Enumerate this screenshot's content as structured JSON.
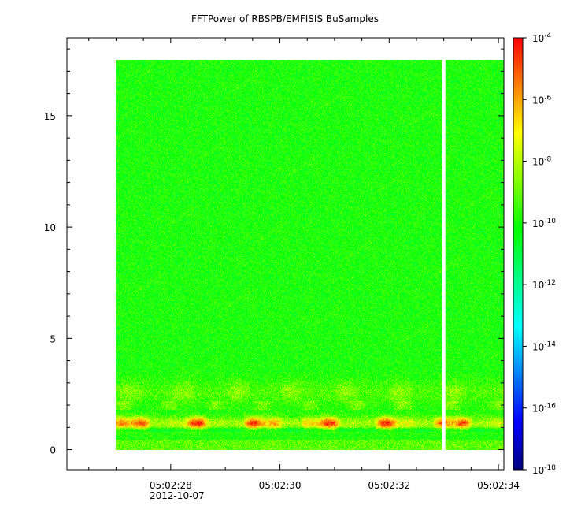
{
  "chart_data": {
    "type": "heatmap",
    "title": "FFTPower of RBSPB/EMFISIS  BuSamples",
    "xlabel": "",
    "ylabel": "",
    "date_label": "2012-10-07",
    "x_range": [
      "05:02:26.1",
      "05:02:34.1"
    ],
    "data_x_range": [
      "05:02:27.0",
      "05:02:34.1"
    ],
    "gap_time": "05:02:33.0",
    "x_ticks": [
      "05:02:28",
      "05:02:30",
      "05:02:32",
      "05:02:34"
    ],
    "ylim": [
      -0.9,
      18.5
    ],
    "data_y_range": [
      0,
      17.5
    ],
    "y_ticks": [
      0,
      5,
      10,
      15
    ],
    "colorbar": {
      "scale": "log",
      "range": [
        1e-18,
        0.0001
      ],
      "tick_exponents": [
        -4,
        -6,
        -8,
        -10,
        -12,
        -14,
        -16,
        -18
      ],
      "tick_base": "10",
      "colormap": [
        "#000080",
        "#0000ff",
        "#0080ff",
        "#00ffff",
        "#00ff80",
        "#00ff00",
        "#80ff00",
        "#ffff00",
        "#ff8000",
        "#ff0000"
      ]
    },
    "features": {
      "background_level_exp": -10,
      "band_center_y": 1.2,
      "band_level_exp": -5,
      "sub_band_y": 2.6,
      "sub_band_level_exp": -8
    }
  }
}
